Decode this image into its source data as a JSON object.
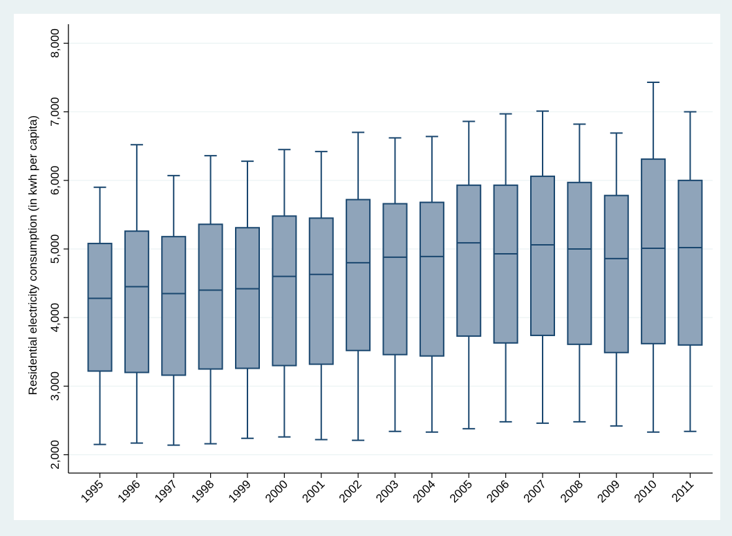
{
  "chart_data": {
    "type": "box",
    "ylabel": "Residential electricity consumption (in kwh per capita)",
    "xlabel": "",
    "ylim": [
      2000,
      8000
    ],
    "yticks": [
      2000,
      3000,
      4000,
      5000,
      6000,
      7000,
      8000
    ],
    "ytick_labels": [
      "2,000",
      "3,000",
      "4,000",
      "5,000",
      "6,000",
      "7,000",
      "8,000"
    ],
    "grid": true,
    "categories": [
      "1995",
      "1996",
      "1997",
      "1998",
      "1999",
      "2000",
      "2001",
      "2002",
      "2003",
      "2004",
      "2005",
      "2006",
      "2007",
      "2008",
      "2009",
      "2010",
      "2011"
    ],
    "boxes": [
      {
        "whisker_low": 2150,
        "q1": 3220,
        "median": 4280,
        "q3": 5080,
        "whisker_high": 5900
      },
      {
        "whisker_low": 2170,
        "q1": 3200,
        "median": 4450,
        "q3": 5260,
        "whisker_high": 6520
      },
      {
        "whisker_low": 2140,
        "q1": 3160,
        "median": 4350,
        "q3": 5180,
        "whisker_high": 6070
      },
      {
        "whisker_low": 2160,
        "q1": 3250,
        "median": 4400,
        "q3": 5360,
        "whisker_high": 6360
      },
      {
        "whisker_low": 2240,
        "q1": 3260,
        "median": 4420,
        "q3": 5310,
        "whisker_high": 6280
      },
      {
        "whisker_low": 2260,
        "q1": 3300,
        "median": 4600,
        "q3": 5480,
        "whisker_high": 6450
      },
      {
        "whisker_low": 2220,
        "q1": 3320,
        "median": 4630,
        "q3": 5450,
        "whisker_high": 6420
      },
      {
        "whisker_low": 2210,
        "q1": 3520,
        "median": 4800,
        "q3": 5720,
        "whisker_high": 6700
      },
      {
        "whisker_low": 2340,
        "q1": 3460,
        "median": 4880,
        "q3": 5660,
        "whisker_high": 6620
      },
      {
        "whisker_low": 2330,
        "q1": 3440,
        "median": 4890,
        "q3": 5680,
        "whisker_high": 6640
      },
      {
        "whisker_low": 2380,
        "q1": 3730,
        "median": 5090,
        "q3": 5930,
        "whisker_high": 6860
      },
      {
        "whisker_low": 2480,
        "q1": 3630,
        "median": 4930,
        "q3": 5930,
        "whisker_high": 6970
      },
      {
        "whisker_low": 2460,
        "q1": 3740,
        "median": 5060,
        "q3": 6060,
        "whisker_high": 7010
      },
      {
        "whisker_low": 2480,
        "q1": 3610,
        "median": 5000,
        "q3": 5970,
        "whisker_high": 6820
      },
      {
        "whisker_low": 2420,
        "q1": 3490,
        "median": 4860,
        "q3": 5780,
        "whisker_high": 6690
      },
      {
        "whisker_low": 2330,
        "q1": 3620,
        "median": 5010,
        "q3": 6310,
        "whisker_high": 7430
      },
      {
        "whisker_low": 2340,
        "q1": 3600,
        "median": 5020,
        "q3": 6000,
        "whisker_high": 7000
      }
    ],
    "colors": {
      "background": "#eaf2f3",
      "plot_background": "#ffffff",
      "box_fill": "#8fa4ba",
      "box_stroke": "#1a476f",
      "grid": "#eaf2f3",
      "axis": "#000000"
    }
  }
}
